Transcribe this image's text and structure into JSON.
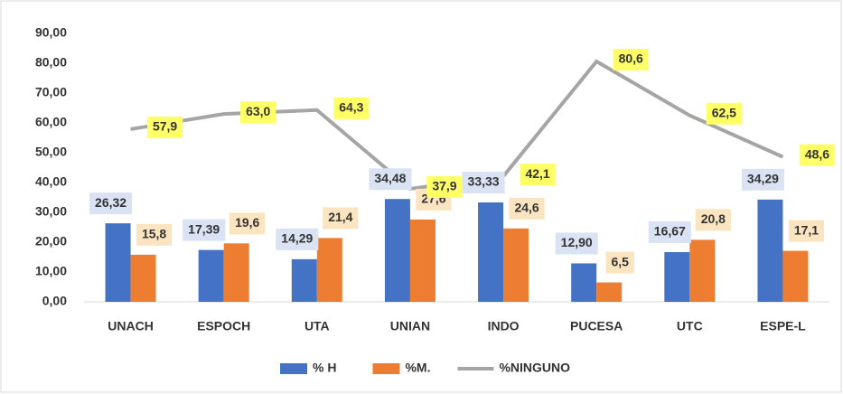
{
  "chart_data": {
    "type": "bar",
    "categories": [
      "UNACH",
      "ESPOCH",
      "UTA",
      "UNIAN",
      "INDO",
      "PUCESA",
      "UTC",
      "ESPE-L"
    ],
    "series": [
      {
        "name": "% H",
        "color": "#4472c4",
        "type": "bar",
        "values": [
          26.32,
          17.39,
          14.29,
          34.48,
          33.33,
          12.9,
          16.67,
          34.29
        ],
        "value_labels": [
          "26,32",
          "17,39",
          "14,29",
          "34,48",
          "33,33",
          "12,90",
          "16,67",
          "34,29"
        ]
      },
      {
        "name": "%M.",
        "color": "#ed7d31",
        "type": "bar",
        "values": [
          15.8,
          19.6,
          21.4,
          27.6,
          24.6,
          6.5,
          20.8,
          17.1
        ],
        "value_labels": [
          "15,8",
          "19,6",
          "21,4",
          "27,6",
          "24,6",
          "6,5",
          "20,8",
          "17,1"
        ]
      },
      {
        "name": "%NINGUNO",
        "color": "#a5a5a5",
        "type": "line",
        "values": [
          57.9,
          63,
          64.3,
          37.9,
          42.1,
          80.6,
          62.5,
          48.6
        ],
        "value_labels": [
          "57,9",
          "63,0",
          "64,3",
          "37,9",
          "42,1",
          "80,6",
          "62,5",
          "48,6"
        ]
      }
    ],
    "ylim": [
      0,
      90
    ],
    "yticks": [
      {
        "value": 0,
        "label": "0,00"
      },
      {
        "value": 10,
        "label": "10,00"
      },
      {
        "value": 20,
        "label": "20,00"
      },
      {
        "value": 30,
        "label": "30,00"
      },
      {
        "value": 40,
        "label": "40,00"
      },
      {
        "value": 50,
        "label": "50,00"
      },
      {
        "value": 60,
        "label": "60,00"
      },
      {
        "value": 70,
        "label": "70,00"
      },
      {
        "value": 80,
        "label": "80,00"
      },
      {
        "value": 90,
        "label": "90,00"
      }
    ],
    "grid": false,
    "legend": "bottom"
  }
}
